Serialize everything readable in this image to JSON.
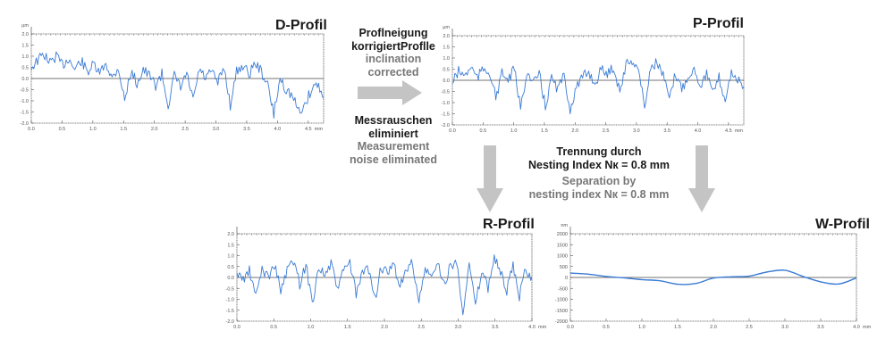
{
  "left_text": {
    "de1": "Proflneigung",
    "de2": "korrigiertProflle",
    "en1": "inclination",
    "en2": "corrected",
    "de3": "Messrauschen",
    "de4": "eliminiert",
    "en3": "Measurement",
    "en4": "noise eliminated"
  },
  "center_text": {
    "de1": "Trennung durch",
    "de2": "Nesting Index Nк = 0.8 mm",
    "en1": "Separation by",
    "en2": "nesting index Nк = 0.8 mm"
  },
  "colors": {
    "trace": "#3a7bd5",
    "arrow": "#c4c4c4",
    "axis": "#555555"
  },
  "chart_data": [
    {
      "id": "d",
      "type": "line",
      "title": "D-Profil",
      "ylabel": "µm",
      "xunit": "mm",
      "ylim": [
        -2,
        2
      ],
      "xlim": [
        0,
        4.75
      ],
      "yticks": [
        "2.0",
        "1.5",
        "1.0",
        "0.5",
        "0.0",
        "-0.5",
        "-1.0",
        "-1.5",
        "-2.0"
      ],
      "xticks": [
        "0.0",
        "0.5",
        "1.0",
        "1.5",
        "2.0",
        "2.5",
        "3.0",
        "3.5",
        "4.0",
        "4.5"
      ],
      "values": [
        0.5,
        0.8,
        1.1,
        0.7,
        1.0,
        0.6,
        0.9,
        0.4,
        0.8,
        0.3,
        0.6,
        0.2,
        0.7,
        0.0,
        0.5,
        -1.0,
        0.3,
        -0.2,
        0.4,
        0.1,
        -0.3,
        0.2,
        -1.2,
        0.1,
        -0.4,
        0.2,
        -1.0,
        0.4,
        0.0,
        0.3,
        -0.2,
        0.5,
        -1.2,
        0.3,
        0.6,
        0.2,
        0.7,
        0.3,
        -0.3,
        -1.6,
        0.0,
        -0.5,
        -0.8,
        -1.5,
        -1.2,
        -0.5,
        -0.2,
        -0.9
      ]
    },
    {
      "id": "p",
      "type": "line",
      "title": "P-Profil",
      "ylabel": "µm",
      "xunit": "mm",
      "ylim": [
        -2,
        2
      ],
      "xlim": [
        0,
        4.75
      ],
      "yticks": [
        "2.0",
        "1.5",
        "1.0",
        "0.5",
        "0.0",
        "-0.5",
        "-1.0",
        "-1.5",
        "-2.0"
      ],
      "xticks": [
        "0.0",
        "0.5",
        "1.0",
        "1.5",
        "2.0",
        "2.5",
        "3.0",
        "3.5",
        "4.0",
        "4.5"
      ],
      "values": [
        -0.1,
        0.4,
        0.2,
        0.6,
        0.1,
        0.5,
        0.4,
        -0.8,
        0.3,
        0.0,
        0.5,
        -1.3,
        0.4,
        -0.2,
        0.3,
        -1.2,
        0.1,
        -0.4,
        0.2,
        -1.3,
        -0.3,
        0.1,
        0.4,
        -0.2,
        0.5,
        0.3,
        0.6,
        -0.5,
        0.7,
        0.9,
        0.5,
        -1.2,
        0.6,
        0.8,
        0.2,
        -0.9,
        0.3,
        -0.4,
        0.2,
        0.5,
        -0.2,
        0.3,
        -0.6,
        0.1,
        -0.9,
        0.4,
        0.0,
        -0.3
      ]
    },
    {
      "id": "r",
      "type": "line",
      "title": "R-Profil",
      "ylabel": "",
      "xunit": "mm",
      "ylim": [
        -2,
        2
      ],
      "xlim": [
        0,
        4.0
      ],
      "yticks": [
        "2.0",
        "1.5",
        "1.0",
        "0.5",
        "0.0",
        "-0.5",
        "-1.0",
        "-1.5",
        "-2.0"
      ],
      "xticks": [
        "0.0",
        "0.5",
        "1.0",
        "1.5",
        "2.0",
        "2.5",
        "3.0",
        "3.5",
        "4.0"
      ],
      "values": [
        0.2,
        -0.1,
        0.3,
        -0.9,
        0.4,
        0.0,
        0.6,
        -0.6,
        0.3,
        0.8,
        -0.3,
        0.6,
        -1.2,
        0.5,
        0.1,
        0.6,
        -0.5,
        0.3,
        0.7,
        -0.8,
        0.2,
        0.4,
        -1.0,
        0.5,
        0.1,
        0.6,
        -0.4,
        0.3,
        0.7,
        -1.2,
        0.4,
        0.0,
        0.6,
        -0.3,
        0.5,
        0.7,
        -1.5,
        0.6,
        -1.3,
        0.3,
        -0.5,
        1.0,
        0.2,
        -0.6,
        0.5,
        -0.9,
        0.4,
        0.0
      ]
    },
    {
      "id": "w",
      "type": "line",
      "title": "W-Profil",
      "ylabel": "nm",
      "xunit": "mm",
      "ylim": [
        -2000,
        2000
      ],
      "xlim": [
        0,
        4.0
      ],
      "yticks": [
        "2000",
        "1500",
        "1000",
        "500",
        "0",
        "-500",
        "-1000",
        "-1500",
        "-2000"
      ],
      "xticks": [
        "0.0",
        "0.5",
        "1.0",
        "1.5",
        "2.0",
        "2.5",
        "3.0",
        "3.5",
        "4.0"
      ],
      "values": [
        200,
        150,
        50,
        -20,
        -100,
        -150,
        -310,
        -280,
        -30,
        30,
        60,
        250,
        330,
        50,
        -200,
        -300,
        -20
      ]
    }
  ]
}
